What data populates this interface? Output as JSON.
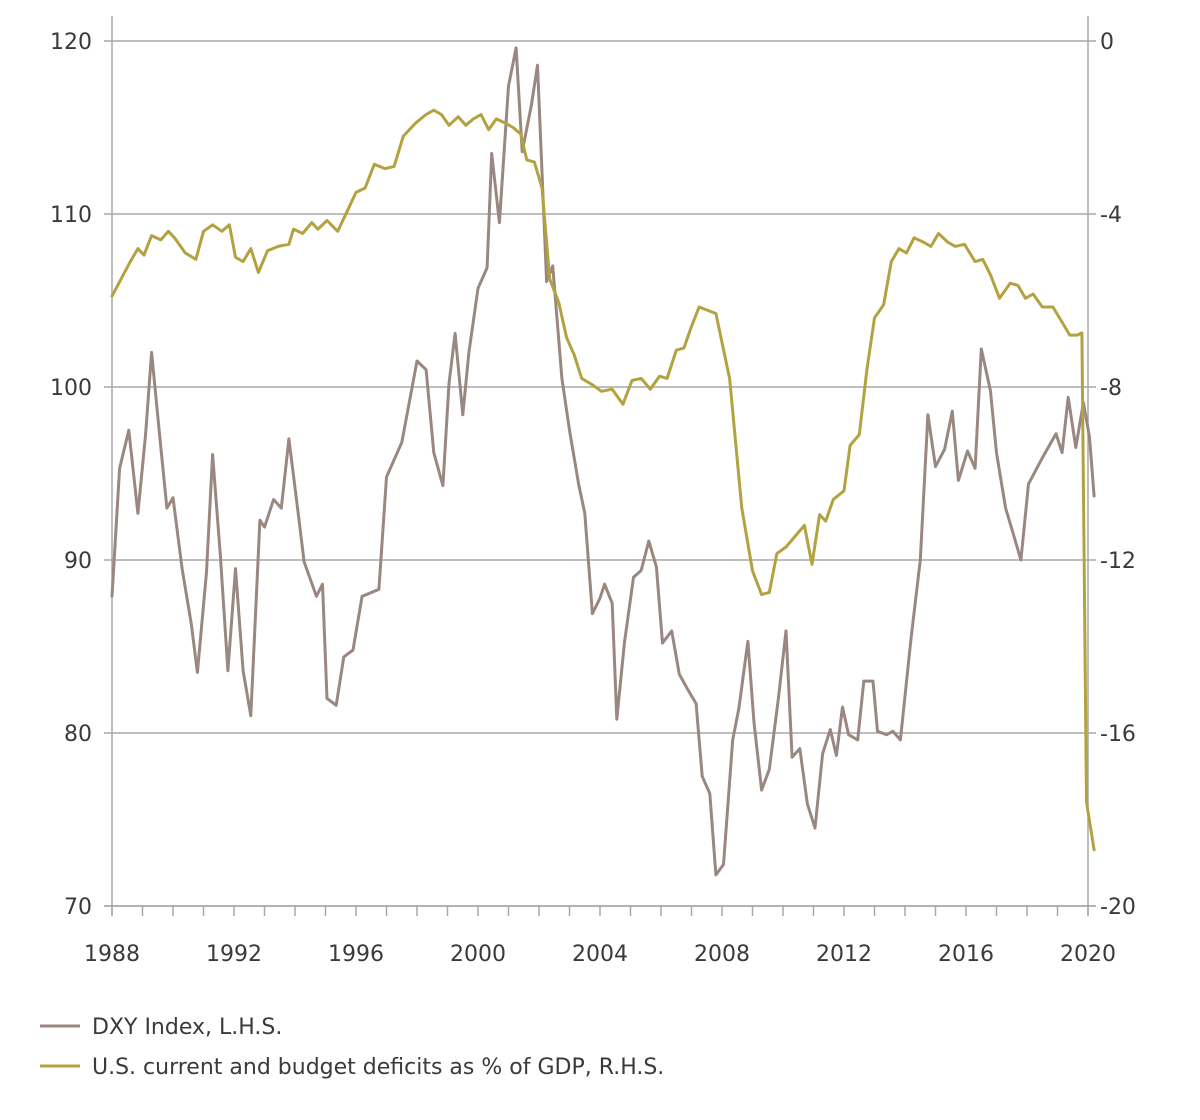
{
  "chart_data": {
    "type": "line",
    "title": "",
    "xlabel": "",
    "ylabel_left": "",
    "ylabel_right": "",
    "grid": true,
    "xlim": [
      1988,
      2020
    ],
    "ylim_left": [
      70,
      120
    ],
    "ylim_right": [
      -20,
      0
    ],
    "x_ticks": [
      "1988",
      "1992",
      "1996",
      "2000",
      "2004",
      "2008",
      "2012",
      "2016",
      "2020"
    ],
    "y_ticks_left": [
      "120",
      "110",
      "100",
      "90",
      "80",
      "70"
    ],
    "y_ticks_right": [
      "0",
      "-4",
      "-8",
      "-12",
      "-16",
      "-20"
    ],
    "legend_position": "bottom-left",
    "series": [
      {
        "name": "DXY Index, L.H.S.",
        "axis": "left",
        "color": "#9a8780",
        "points": [
          [
            1988.0,
            87.9
          ],
          [
            1988.25,
            95.3
          ],
          [
            1988.55,
            97.5
          ],
          [
            1988.85,
            92.7
          ],
          [
            1989.1,
            97.2
          ],
          [
            1989.3,
            102.0
          ],
          [
            1989.55,
            97.4
          ],
          [
            1989.8,
            93.0
          ],
          [
            1990.0,
            93.6
          ],
          [
            1990.3,
            89.5
          ],
          [
            1990.6,
            86.3
          ],
          [
            1990.8,
            83.5
          ],
          [
            1991.1,
            89.3
          ],
          [
            1991.3,
            96.1
          ],
          [
            1991.55,
            90.3
          ],
          [
            1991.8,
            83.6
          ],
          [
            1992.05,
            89.5
          ],
          [
            1992.3,
            83.6
          ],
          [
            1992.55,
            81.0
          ],
          [
            1992.85,
            92.3
          ],
          [
            1993.0,
            91.9
          ],
          [
            1993.3,
            93.5
          ],
          [
            1993.55,
            93.0
          ],
          [
            1993.8,
            97.0
          ],
          [
            1994.05,
            93.5
          ],
          [
            1994.3,
            89.9
          ],
          [
            1994.7,
            87.9
          ],
          [
            1994.9,
            88.6
          ],
          [
            1995.05,
            82.0
          ],
          [
            1995.35,
            81.6
          ],
          [
            1995.6,
            84.4
          ],
          [
            1995.9,
            84.8
          ],
          [
            1996.2,
            87.9
          ],
          [
            1996.75,
            88.3
          ],
          [
            1997.0,
            94.8
          ],
          [
            1997.5,
            96.8
          ],
          [
            1998.0,
            101.5
          ],
          [
            1998.3,
            101.0
          ],
          [
            1998.55,
            96.2
          ],
          [
            1998.85,
            94.3
          ],
          [
            1999.05,
            100.2
          ],
          [
            1999.25,
            103.1
          ],
          [
            1999.5,
            98.4
          ],
          [
            1999.7,
            102.0
          ],
          [
            2000.0,
            105.7
          ],
          [
            2000.3,
            106.9
          ],
          [
            2000.45,
            113.5
          ],
          [
            2000.7,
            109.5
          ],
          [
            2001.0,
            117.4
          ],
          [
            2001.25,
            119.6
          ],
          [
            2001.45,
            113.6
          ],
          [
            2001.75,
            116.3
          ],
          [
            2001.95,
            118.6
          ],
          [
            2002.25,
            106.1
          ],
          [
            2002.45,
            107.0
          ],
          [
            2002.75,
            100.5
          ],
          [
            2003.0,
            97.5
          ],
          [
            2003.3,
            94.4
          ],
          [
            2003.5,
            92.7
          ],
          [
            2003.75,
            86.9
          ],
          [
            2004.0,
            87.8
          ],
          [
            2004.15,
            88.6
          ],
          [
            2004.4,
            87.5
          ],
          [
            2004.55,
            80.8
          ],
          [
            2004.8,
            85.2
          ],
          [
            2005.1,
            89.0
          ],
          [
            2005.35,
            89.4
          ],
          [
            2005.6,
            91.1
          ],
          [
            2005.85,
            89.6
          ],
          [
            2006.05,
            85.2
          ],
          [
            2006.35,
            85.9
          ],
          [
            2006.6,
            83.4
          ],
          [
            2006.85,
            82.6
          ],
          [
            2007.15,
            81.7
          ],
          [
            2007.35,
            77.5
          ],
          [
            2007.6,
            76.5
          ],
          [
            2007.8,
            71.8
          ],
          [
            2008.05,
            72.4
          ],
          [
            2008.35,
            79.6
          ],
          [
            2008.55,
            81.4
          ],
          [
            2008.85,
            85.3
          ],
          [
            2009.05,
            80.6
          ],
          [
            2009.3,
            76.7
          ],
          [
            2009.55,
            77.9
          ],
          [
            2009.85,
            82.0
          ],
          [
            2010.1,
            85.9
          ],
          [
            2010.3,
            78.6
          ],
          [
            2010.55,
            79.1
          ],
          [
            2010.8,
            75.9
          ],
          [
            2011.05,
            74.5
          ],
          [
            2011.3,
            78.8
          ],
          [
            2011.55,
            80.2
          ],
          [
            2011.75,
            78.7
          ],
          [
            2011.95,
            81.5
          ],
          [
            2012.15,
            79.9
          ],
          [
            2012.45,
            79.6
          ],
          [
            2012.65,
            83.0
          ],
          [
            2012.95,
            83.0
          ],
          [
            2013.1,
            80.1
          ],
          [
            2013.4,
            79.9
          ],
          [
            2013.6,
            80.1
          ],
          [
            2013.85,
            79.6
          ],
          [
            2014.2,
            85.5
          ],
          [
            2014.5,
            90.0
          ],
          [
            2014.75,
            98.4
          ],
          [
            2015.0,
            95.4
          ],
          [
            2015.3,
            96.4
          ],
          [
            2015.55,
            98.6
          ],
          [
            2015.75,
            94.6
          ],
          [
            2016.05,
            96.3
          ],
          [
            2016.3,
            95.3
          ],
          [
            2016.5,
            102.2
          ],
          [
            2016.8,
            99.8
          ],
          [
            2017.0,
            96.2
          ],
          [
            2017.3,
            93.0
          ],
          [
            2017.55,
            91.5
          ],
          [
            2017.8,
            90.0
          ],
          [
            2018.05,
            94.4
          ],
          [
            2018.5,
            95.9
          ],
          [
            2018.95,
            97.3
          ],
          [
            2019.15,
            96.2
          ],
          [
            2019.35,
            99.4
          ],
          [
            2019.6,
            96.5
          ],
          [
            2019.85,
            99.1
          ],
          [
            2020.05,
            97.1
          ],
          [
            2020.2,
            93.7
          ]
        ]
      },
      {
        "name": "U.S. current and budget deficits as % of GDP, R.H.S.",
        "axis": "right",
        "color": "#b3a240",
        "points": [
          [
            1988.0,
            -5.9
          ],
          [
            1988.3,
            -5.5
          ],
          [
            1988.6,
            -5.1
          ],
          [
            1988.85,
            -4.8
          ],
          [
            1989.05,
            -4.95
          ],
          [
            1989.3,
            -4.5
          ],
          [
            1989.6,
            -4.6
          ],
          [
            1989.85,
            -4.4
          ],
          [
            1990.05,
            -4.55
          ],
          [
            1990.4,
            -4.9
          ],
          [
            1990.75,
            -5.05
          ],
          [
            1991.0,
            -4.4
          ],
          [
            1991.3,
            -4.25
          ],
          [
            1991.6,
            -4.4
          ],
          [
            1991.85,
            -4.25
          ],
          [
            1992.05,
            -5.0
          ],
          [
            1992.3,
            -5.1
          ],
          [
            1992.55,
            -4.8
          ],
          [
            1992.8,
            -5.35
          ],
          [
            1993.1,
            -4.85
          ],
          [
            1993.45,
            -4.75
          ],
          [
            1993.8,
            -4.7
          ],
          [
            1993.95,
            -4.35
          ],
          [
            1994.25,
            -4.45
          ],
          [
            1994.55,
            -4.2
          ],
          [
            1994.75,
            -4.35
          ],
          [
            1995.05,
            -4.15
          ],
          [
            1995.4,
            -4.4
          ],
          [
            1995.7,
            -3.95
          ],
          [
            1996.0,
            -3.5
          ],
          [
            1996.3,
            -3.4
          ],
          [
            1996.6,
            -2.85
          ],
          [
            1996.95,
            -2.95
          ],
          [
            1997.25,
            -2.9
          ],
          [
            1997.55,
            -2.2
          ],
          [
            1997.95,
            -1.9
          ],
          [
            1998.3,
            -1.7
          ],
          [
            1998.55,
            -1.6
          ],
          [
            1998.8,
            -1.7
          ],
          [
            1999.05,
            -1.95
          ],
          [
            1999.35,
            -1.75
          ],
          [
            1999.6,
            -1.95
          ],
          [
            1999.85,
            -1.8
          ],
          [
            2000.1,
            -1.7
          ],
          [
            2000.35,
            -2.05
          ],
          [
            2000.6,
            -1.8
          ],
          [
            2000.9,
            -1.9
          ],
          [
            2001.15,
            -2.0
          ],
          [
            2001.4,
            -2.15
          ],
          [
            2001.6,
            -2.75
          ],
          [
            2001.85,
            -2.8
          ],
          [
            2002.1,
            -3.4
          ],
          [
            2002.35,
            -5.5
          ],
          [
            2002.65,
            -6.05
          ],
          [
            2002.9,
            -6.85
          ],
          [
            2003.15,
            -7.25
          ],
          [
            2003.4,
            -7.8
          ],
          [
            2003.75,
            -7.95
          ],
          [
            2004.05,
            -8.1
          ],
          [
            2004.4,
            -8.05
          ],
          [
            2004.75,
            -8.4
          ],
          [
            2005.05,
            -7.85
          ],
          [
            2005.35,
            -7.8
          ],
          [
            2005.65,
            -8.05
          ],
          [
            2005.95,
            -7.75
          ],
          [
            2006.2,
            -7.8
          ],
          [
            2006.5,
            -7.15
          ],
          [
            2006.75,
            -7.1
          ],
          [
            2007.0,
            -6.6
          ],
          [
            2007.25,
            -6.15
          ],
          [
            2007.8,
            -6.3
          ],
          [
            2008.25,
            -7.8
          ],
          [
            2008.65,
            -10.8
          ],
          [
            2009.0,
            -12.25
          ],
          [
            2009.3,
            -12.8
          ],
          [
            2009.55,
            -12.75
          ],
          [
            2009.8,
            -11.85
          ],
          [
            2010.1,
            -11.7
          ],
          [
            2010.7,
            -11.2
          ],
          [
            2010.95,
            -12.1
          ],
          [
            2011.2,
            -10.95
          ],
          [
            2011.4,
            -11.1
          ],
          [
            2011.65,
            -10.6
          ],
          [
            2012.0,
            -10.4
          ],
          [
            2012.2,
            -9.35
          ],
          [
            2012.5,
            -9.1
          ],
          [
            2012.75,
            -7.6
          ],
          [
            2013.0,
            -6.4
          ],
          [
            2013.3,
            -6.1
          ],
          [
            2013.55,
            -5.1
          ],
          [
            2013.8,
            -4.8
          ],
          [
            2014.05,
            -4.9
          ],
          [
            2014.3,
            -4.55
          ],
          [
            2014.6,
            -4.65
          ],
          [
            2014.85,
            -4.75
          ],
          [
            2015.1,
            -4.45
          ],
          [
            2015.4,
            -4.65
          ],
          [
            2015.65,
            -4.75
          ],
          [
            2015.95,
            -4.7
          ],
          [
            2016.3,
            -5.1
          ],
          [
            2016.55,
            -5.05
          ],
          [
            2016.8,
            -5.4
          ],
          [
            2017.1,
            -5.95
          ],
          [
            2017.45,
            -5.6
          ],
          [
            2017.7,
            -5.65
          ],
          [
            2017.95,
            -5.95
          ],
          [
            2018.2,
            -5.85
          ],
          [
            2018.5,
            -6.15
          ],
          [
            2018.85,
            -6.15
          ],
          [
            2019.15,
            -6.5
          ],
          [
            2019.4,
            -6.8
          ],
          [
            2019.65,
            -6.8
          ],
          [
            2019.8,
            -6.75
          ],
          [
            2019.95,
            -17.6
          ],
          [
            2020.2,
            -18.7
          ]
        ]
      }
    ]
  }
}
